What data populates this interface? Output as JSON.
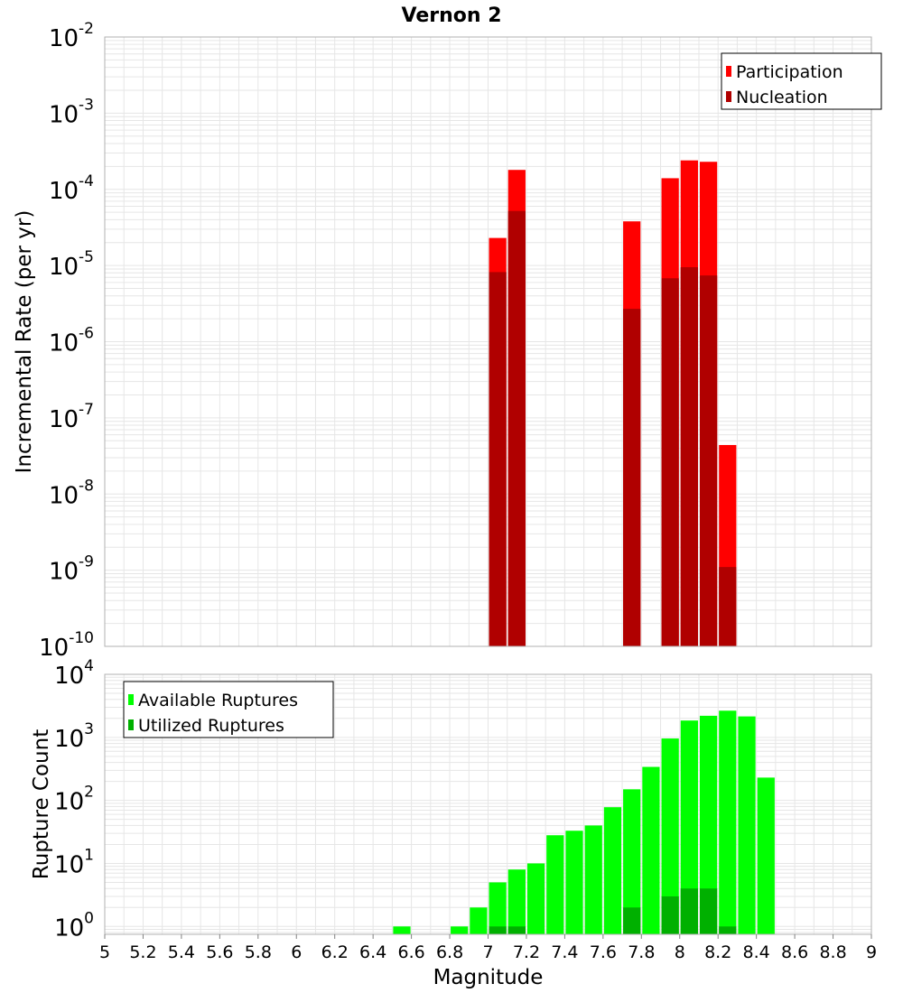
{
  "title": "Vernon 2",
  "colors": {
    "participation": "#ff0000",
    "nucleation": "#b00000",
    "available": "#00ff00",
    "utilized": "#00b000",
    "grid": "#e6e6e6",
    "frame": "#b0b0b0"
  },
  "chart_data": [
    {
      "type": "bar",
      "yscale": "log",
      "title": "Vernon 2",
      "xlabel": "",
      "ylabel": "Incremental Rate (per yr)",
      "xlim": [
        5,
        9
      ],
      "ylim": [
        1e-10,
        0.01
      ],
      "ytick_exponents": [
        -10,
        -9,
        -8,
        -7,
        -6,
        -5,
        -4,
        -3,
        -2
      ],
      "grid": true,
      "legend_position": "top-right",
      "bar_width": 0.1,
      "x": [
        7.05,
        7.15,
        7.75,
        7.95,
        8.05,
        8.15,
        8.25
      ],
      "series": [
        {
          "name": "Participation",
          "color_key": "participation",
          "values": [
            2.3e-05,
            0.00018,
            3.8e-05,
            0.00014,
            0.00024,
            0.00023,
            4.4e-08
          ]
        },
        {
          "name": "Nucleation",
          "color_key": "nucleation",
          "values": [
            8.2e-06,
            5.2e-05,
            2.7e-06,
            6.8e-06,
            9.5e-06,
            7.4e-06,
            1.1e-09
          ]
        }
      ]
    },
    {
      "type": "bar",
      "yscale": "log",
      "xlabel": "Magnitude",
      "ylabel": "Rupture Count",
      "xlim": [
        5,
        9
      ],
      "ylim": [
        0.75,
        10000
      ],
      "ytick_exponents": [
        0,
        1,
        2,
        3,
        4
      ],
      "xticks": [
        "5",
        "5.2",
        "5.4",
        "5.6",
        "5.8",
        "6",
        "6.2",
        "6.4",
        "6.6",
        "6.8",
        "7",
        "7.2",
        "7.4",
        "7.6",
        "7.8",
        "8",
        "8.2",
        "8.4",
        "8.6",
        "8.8",
        "9"
      ],
      "grid": true,
      "legend_position": "top-left",
      "bar_width": 0.1,
      "series": [
        {
          "name": "Available Ruptures",
          "color_key": "available",
          "x": [
            6.55,
            6.85,
            6.95,
            7.05,
            7.15,
            7.25,
            7.35,
            7.45,
            7.55,
            7.65,
            7.75,
            7.85,
            7.95,
            8.05,
            8.15,
            8.25,
            8.35,
            8.45
          ],
          "values": [
            1,
            1,
            2,
            5,
            8,
            10,
            28,
            33,
            40,
            78,
            150,
            340,
            960,
            1850,
            2200,
            2650,
            2150,
            230
          ]
        },
        {
          "name": "Utilized Ruptures",
          "color_key": "utilized",
          "x": [
            7.05,
            7.15,
            7.75,
            7.95,
            8.05,
            8.15,
            8.25
          ],
          "values": [
            1,
            1,
            2,
            3,
            4,
            4,
            1
          ]
        }
      ]
    }
  ]
}
